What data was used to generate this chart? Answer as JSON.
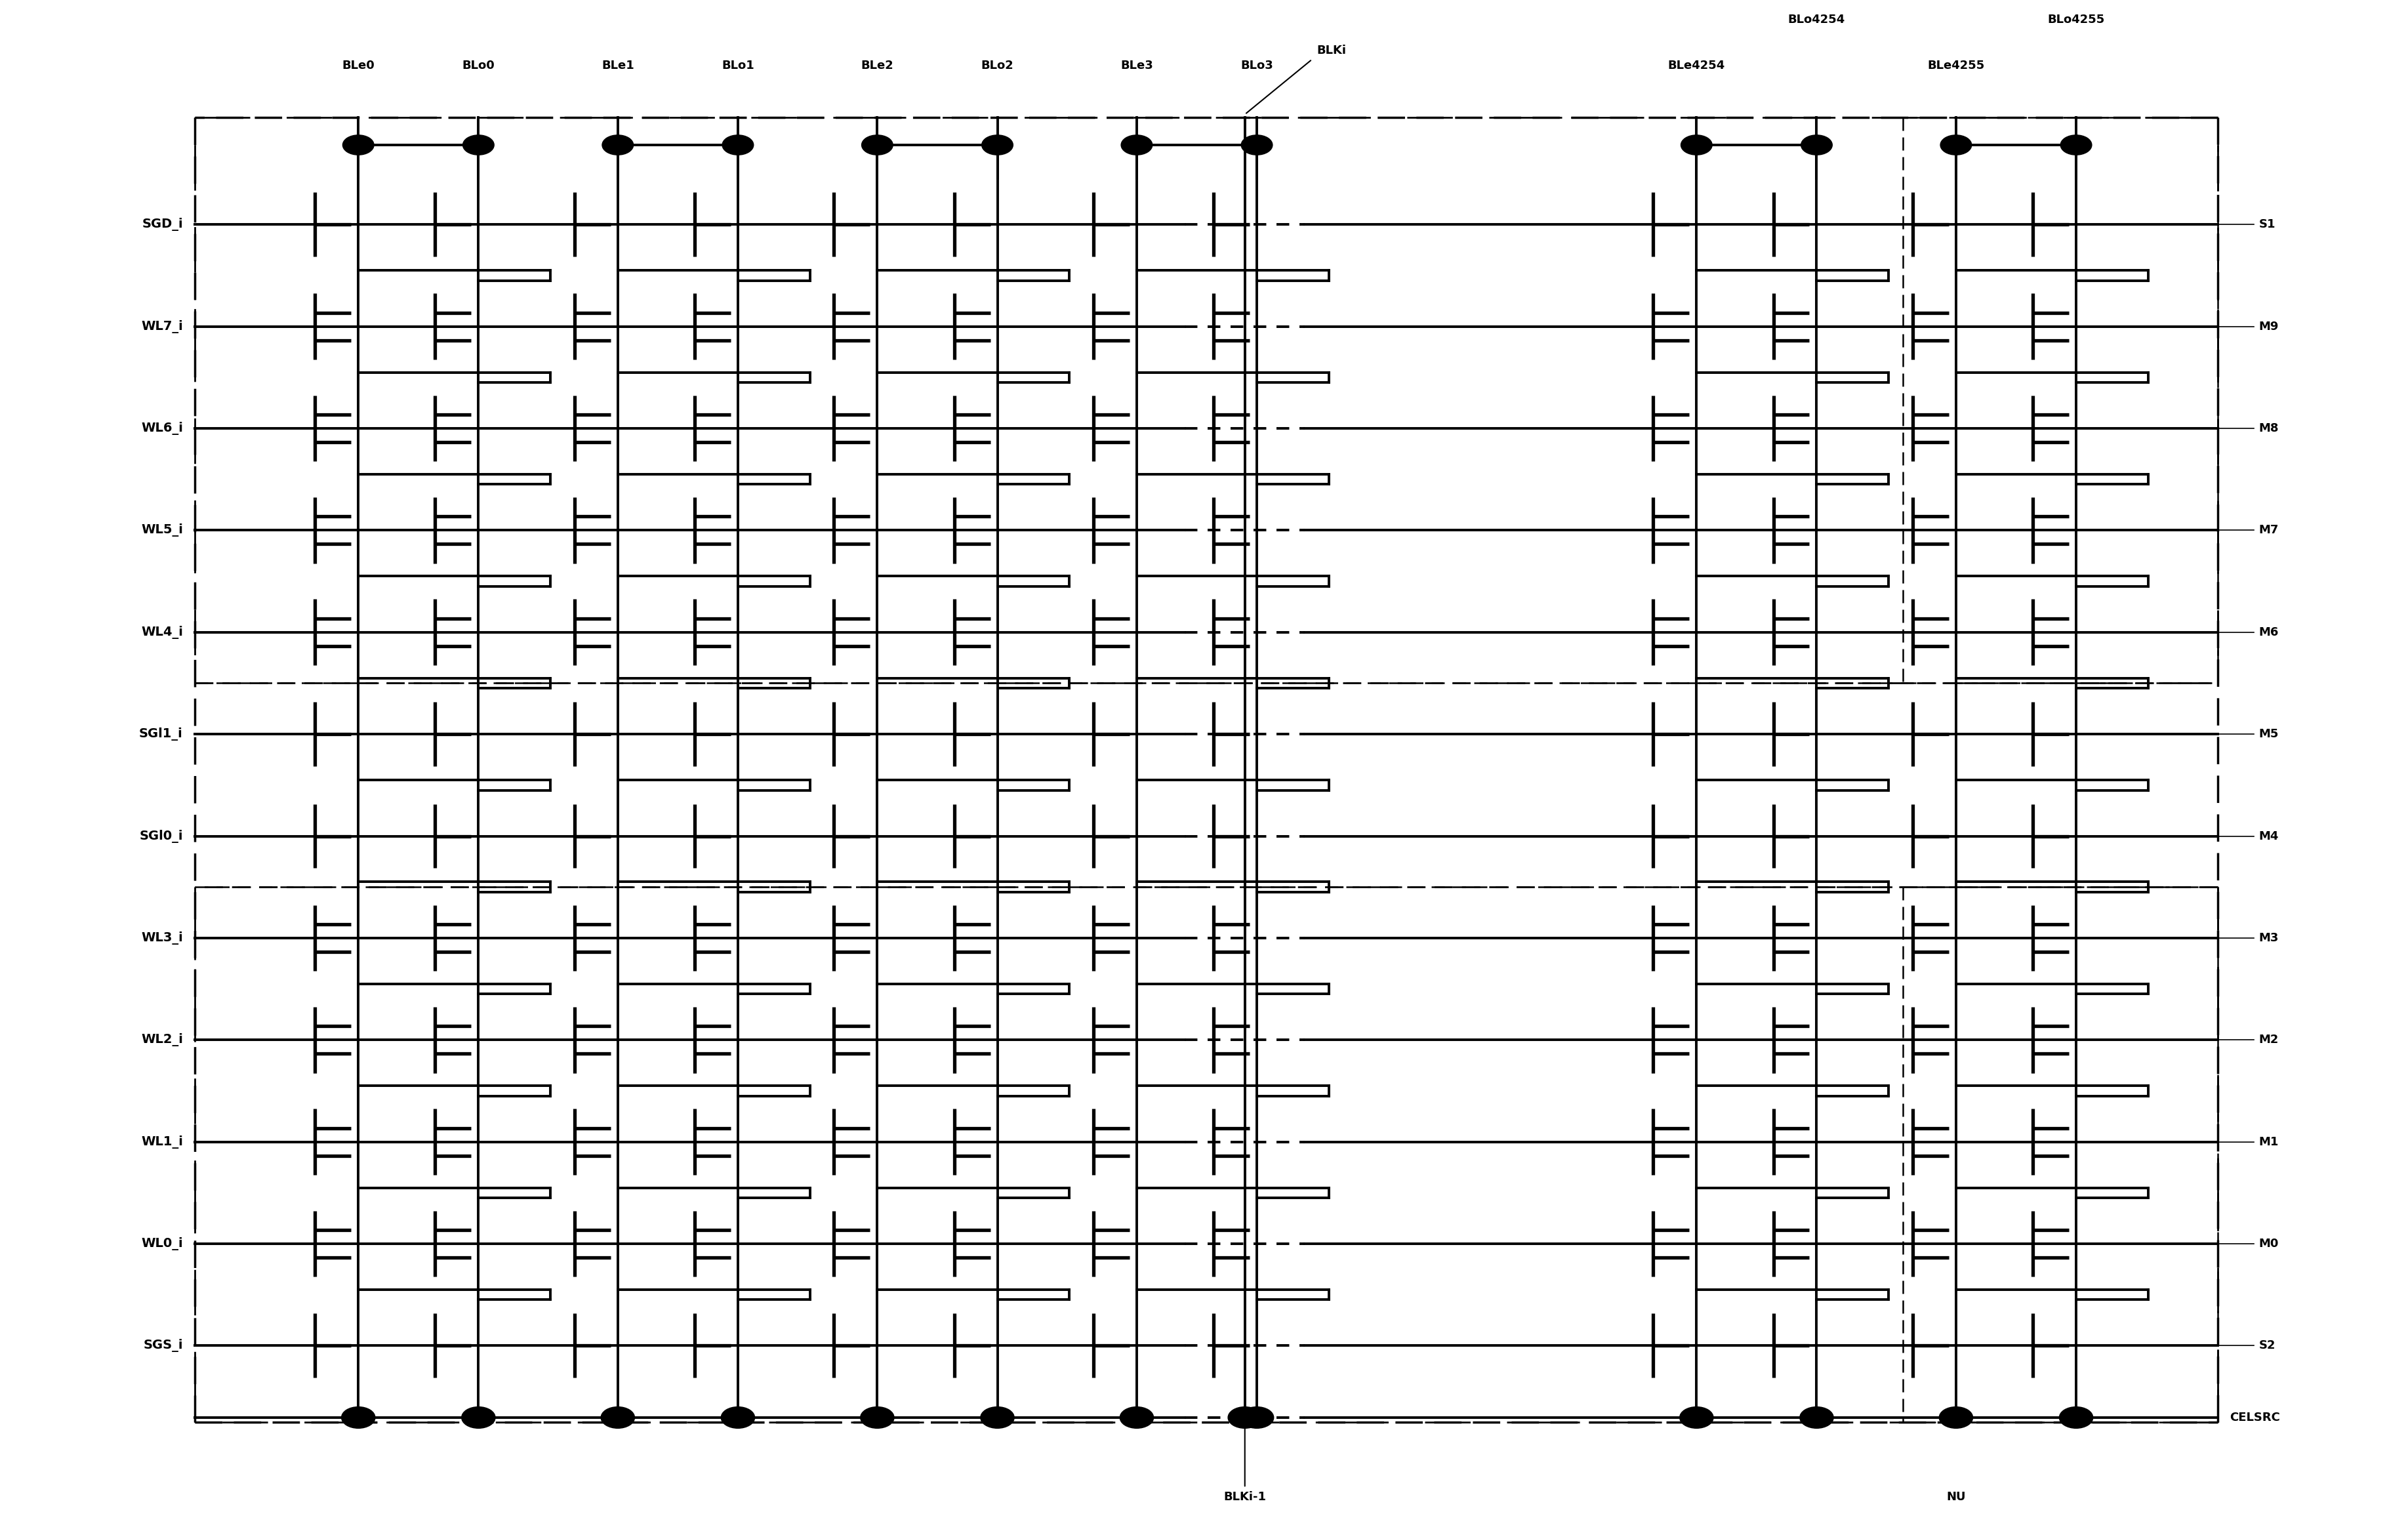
{
  "bg_color": "#ffffff",
  "line_color": "#000000",
  "fig_width": 36.71,
  "fig_height": 23.4,
  "bl_labels_left_group": [
    "BLe0",
    "BLo0",
    "BLe1",
    "BLo1",
    "BLe2",
    "BLo2",
    "BLe3",
    "BLo3"
  ],
  "bl_label_blki": "BLKi",
  "bl_labels_right_group": [
    "BLe4254",
    "BLo4254",
    "BLe4255",
    "BLo4255"
  ],
  "wl_labels_left": [
    "SGD_i",
    "WL7_i",
    "WL6_i",
    "WL5_i",
    "WL4_i",
    "SGl1_i",
    "SGl0_i",
    "WL3_i",
    "WL2_i",
    "WL1_i",
    "WL0_i",
    "SGS_i"
  ],
  "right_labels": [
    "S1",
    "M9",
    "M8",
    "M7",
    "M6",
    "M5",
    "M4",
    "M3",
    "M2",
    "M1",
    "M0",
    "S2"
  ],
  "celsrc_label": "CELSRC",
  "blki_minus1_label": "BLKi-1",
  "nu_label": "NU"
}
